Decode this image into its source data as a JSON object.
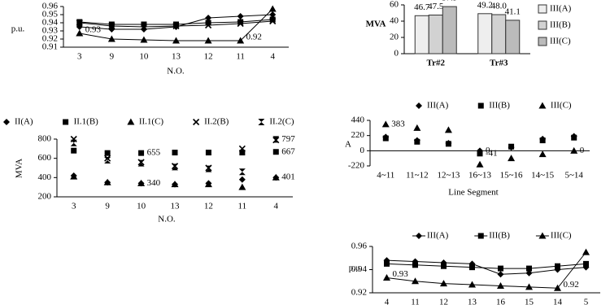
{
  "chart_data": [
    {
      "type": "line",
      "y_label": "p.u.",
      "x_label": "N.O.",
      "categories": [
        "3",
        "9",
        "10",
        "13",
        "12",
        "11",
        "4"
      ],
      "ylim": [
        0.91,
        0.96
      ],
      "yticks": [
        0.91,
        0.92,
        0.93,
        0.94,
        0.95,
        0.96
      ],
      "series": [
        {
          "color": "#000000",
          "marker": "diamond",
          "values": [
            0.935,
            0.932,
            0.932,
            0.935,
            0.946,
            0.948,
            0.95
          ]
        },
        {
          "color": "#000000",
          "marker": "square",
          "values": [
            0.941,
            0.938,
            0.938,
            0.938,
            0.94,
            0.941,
            0.944
          ]
        },
        {
          "color": "#000000",
          "marker": "x",
          "values": [
            0.94,
            0.936,
            0.935,
            0.936,
            0.937,
            0.939,
            0.942
          ]
        },
        {
          "color": "#000000",
          "marker": "triangle",
          "values": [
            0.927,
            0.92,
            0.919,
            0.918,
            0.918,
            0.918,
            0.957
          ],
          "value_labels": [
            "0.93",
            null,
            null,
            null,
            null,
            "0.92",
            null
          ]
        }
      ]
    },
    {
      "type": "bar",
      "y_label": "MVA",
      "categories": [
        "Tr#2",
        "Tr#3"
      ],
      "ylim": [
        0,
        60
      ],
      "yticks": [
        0,
        20,
        40,
        60
      ],
      "legend": "right",
      "series": [
        {
          "name": "III(A)",
          "color": "#eeeeee",
          "values": [
            46.7,
            49.2
          ]
        },
        {
          "name": "III(B)",
          "color": "#d2d2d2",
          "values": [
            47.5,
            48.0
          ],
          "value_labels": [
            "47.5",
            "48.0"
          ]
        },
        {
          "name": "III(C)",
          "color": "#bbbbbb",
          "values": [
            57.9,
            41.1
          ]
        }
      ]
    },
    {
      "type": "scatter",
      "y_label": "MVA",
      "x_label": "N.O.",
      "categories": [
        "3",
        "9",
        "10",
        "13",
        "12",
        "11",
        "4"
      ],
      "ylim": [
        200,
        800
      ],
      "yticks": [
        200,
        400,
        600,
        800
      ],
      "legend": "top",
      "series": [
        {
          "name": "II(A)",
          "color": "#000000",
          "marker": "diamond",
          "values": [
            420,
            350,
            340,
            330,
            340,
            380,
            401
          ],
          "value_labels": [
            null,
            null,
            "340",
            null,
            null,
            null,
            "401"
          ]
        },
        {
          "name": "II.1(B)",
          "color": "#000000",
          "marker": "square",
          "values": [
            680,
            655,
            655,
            660,
            660,
            660,
            667
          ],
          "value_labels": [
            null,
            null,
            "655",
            null,
            null,
            null,
            "667"
          ]
        },
        {
          "name": "II.1(C)",
          "color": "#000000",
          "marker": "triangle",
          "values": [
            410,
            350,
            340,
            330,
            330,
            300,
            401
          ]
        },
        {
          "name": "II.2(B)",
          "color": "#000000",
          "marker": "x",
          "values": [
            800,
            600,
            560,
            520,
            500,
            700,
            790
          ]
        },
        {
          "name": "II.2(C)",
          "color": "#000000",
          "marker": "hourglass",
          "values": [
            760,
            580,
            550,
            510,
            490,
            460,
            797
          ],
          "value_labels": [
            null,
            null,
            null,
            null,
            null,
            null,
            "797"
          ]
        }
      ]
    },
    {
      "type": "scatter",
      "y_label": "A",
      "x_label": "Line Segment",
      "categories": [
        "4~11",
        "11~12",
        "12~13",
        "16~13",
        "15~16",
        "14~15",
        "5~14"
      ],
      "ylim": [
        -220,
        440
      ],
      "yticks": [
        -220,
        0,
        220,
        440
      ],
      "legend": "top",
      "series": [
        {
          "name": "III(A)",
          "color": "#000000",
          "marker": "diamond",
          "values": [
            200,
            150,
            110,
            0,
            50,
            170,
            210
          ],
          "value_labels": [
            null,
            null,
            null,
            "0",
            null,
            null,
            null
          ]
        },
        {
          "name": "III(B)",
          "color": "#000000",
          "marker": "square",
          "values": [
            180,
            130,
            100,
            -41,
            60,
            150,
            190
          ],
          "value_labels": [
            null,
            null,
            null,
            "-41",
            null,
            null,
            null
          ]
        },
        {
          "name": "III(C)",
          "color": "#000000",
          "marker": "triangle",
          "values": [
            383,
            330,
            300,
            -200,
            -110,
            -50,
            0
          ],
          "value_labels": [
            "383",
            null,
            null,
            null,
            null,
            null,
            "0"
          ]
        }
      ]
    },
    {
      "type": "line",
      "y_label": "p.u.",
      "categories": [
        "4",
        "11",
        "12",
        "13",
        "16",
        "15",
        "14",
        "5"
      ],
      "ylim": [
        0.92,
        0.96
      ],
      "yticks": [
        0.92,
        0.94,
        0.96
      ],
      "legend": "top",
      "series": [
        {
          "name": "III(A)",
          "color": "#000000",
          "marker": "diamond",
          "values": [
            0.948,
            0.947,
            0.946,
            0.945,
            0.936,
            0.937,
            0.94,
            0.942
          ]
        },
        {
          "name": "III(B)",
          "color": "#000000",
          "marker": "square",
          "values": [
            0.945,
            0.944,
            0.943,
            0.942,
            0.941,
            0.941,
            0.943,
            0.945
          ]
        },
        {
          "name": "III(C)",
          "color": "#000000",
          "marker": "triangle",
          "values": [
            0.933,
            0.93,
            0.928,
            0.927,
            0.926,
            0.925,
            0.924,
            0.955
          ],
          "value_labels": [
            "0.93",
            null,
            null,
            null,
            null,
            null,
            "0.92",
            null
          ]
        }
      ]
    }
  ]
}
